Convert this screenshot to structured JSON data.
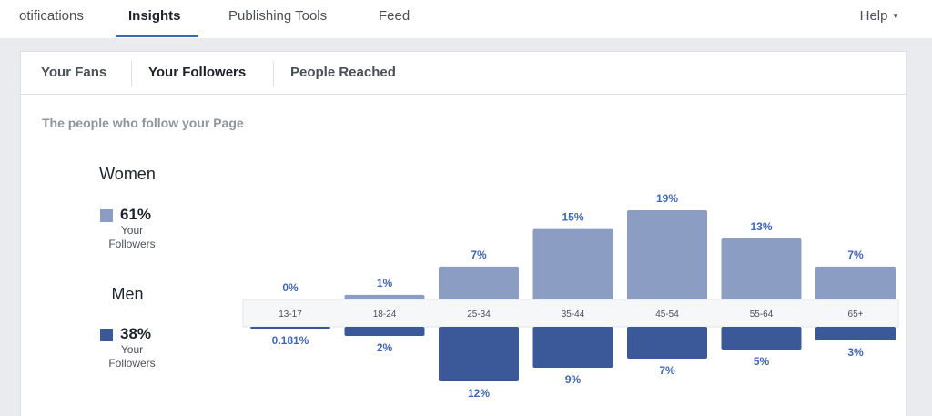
{
  "nav": {
    "items": [
      {
        "label": "otifications",
        "active": false
      },
      {
        "label": "Insights",
        "active": true
      },
      {
        "label": "Publishing Tools",
        "active": false
      },
      {
        "label": "Feed",
        "active": false
      }
    ],
    "help_label": "Help",
    "help_caret": "▾"
  },
  "subtabs": [
    {
      "label": "Your Fans",
      "active": false
    },
    {
      "label": "Your Followers",
      "active": true
    },
    {
      "label": "People Reached",
      "active": false
    }
  ],
  "subtitle": "The people who follow your Page",
  "legend": {
    "women": {
      "title": "Women",
      "percent": "61%",
      "caption_line1": "Your",
      "caption_line2": "Followers"
    },
    "men": {
      "title": "Men",
      "percent": "38%",
      "caption_line1": "Your",
      "caption_line2": "Followers"
    }
  },
  "colors": {
    "women": "#8b9dc3",
    "men": "#3b5998",
    "label_blue": "#4267b2",
    "axis_text": "#4b4f56"
  },
  "chart_data": {
    "type": "bar",
    "categories": [
      "13-17",
      "18-24",
      "25-34",
      "35-44",
      "45-54",
      "55-64",
      "65+"
    ],
    "series": [
      {
        "name": "Women",
        "values": [
          0,
          1,
          7,
          15,
          19,
          13,
          7
        ],
        "labels": [
          "0%",
          "1%",
          "7%",
          "15%",
          "19%",
          "13%",
          "7%"
        ]
      },
      {
        "name": "Men",
        "values": [
          0.181,
          2,
          12,
          9,
          7,
          5,
          3
        ],
        "labels": [
          "0.181%",
          "2%",
          "12%",
          "9%",
          "7%",
          "5%",
          "3%"
        ]
      }
    ],
    "layout": "butterfly-vertical",
    "grid": false
  }
}
